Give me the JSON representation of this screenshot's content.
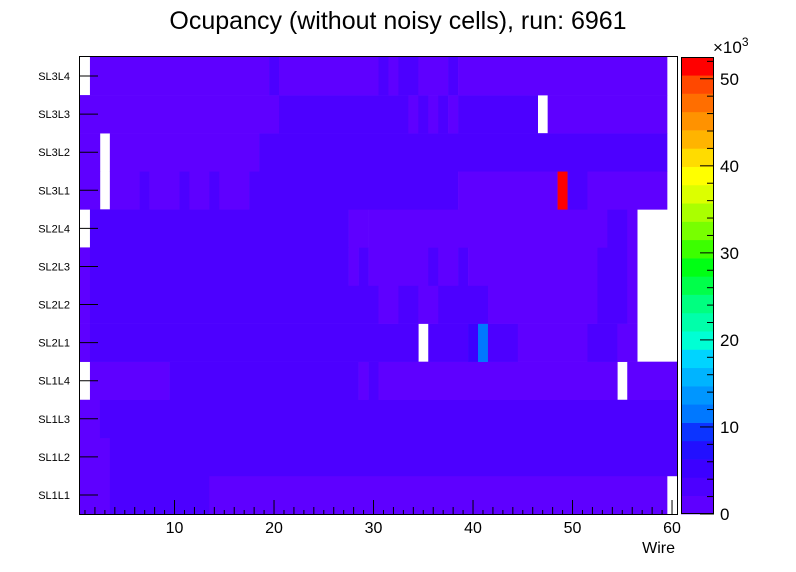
{
  "chart_data": {
    "type": "heatmap",
    "title": "Ocupancy (without noisy cells), run: 6961",
    "xlabel": "Wire",
    "ylabel": "",
    "xlim": [
      0.5,
      60.5
    ],
    "x_ticks": [
      "10",
      "20",
      "30",
      "40",
      "50",
      "60"
    ],
    "y_categories": [
      "SL1L1",
      "SL1L2",
      "SL1L3",
      "SL1L4",
      "SL2L1",
      "SL2L2",
      "SL2L3",
      "SL2L4",
      "SL3L1",
      "SL3L2",
      "SL3L3",
      "SL3L4"
    ],
    "zlim": [
      0,
      52500
    ],
    "z_ticks": [
      "0",
      "10",
      "20",
      "30",
      "40",
      "50"
    ],
    "z_exponent_label": "×10",
    "z_exponent_power": "3",
    "palette": [
      "#5e00ff",
      "#4c00ff",
      "#3c00ff",
      "#2210ff",
      "#0c34ff",
      "#0078ff",
      "#0096ff",
      "#00b4ff",
      "#00d4ff",
      "#00ffd4",
      "#00ffaa",
      "#00ff80",
      "#00ff4a",
      "#00ff14",
      "#3cff00",
      "#78ff00",
      "#aaff00",
      "#dcff00",
      "#ffff00",
      "#ffdc00",
      "#ffb400",
      "#ff9200",
      "#ff6e00",
      "#ff4800",
      "#ff0000"
    ],
    "rows": {
      "SL3L4": [
        [
          1,
          1,
          0
        ],
        [
          2,
          20,
          1000
        ],
        [
          20,
          21,
          3000
        ],
        [
          21,
          31,
          1000
        ],
        [
          31,
          32,
          3000
        ],
        [
          32,
          33,
          1000
        ],
        [
          33,
          35,
          3000
        ],
        [
          35,
          38,
          1000
        ],
        [
          38,
          39,
          3000
        ],
        [
          39,
          60,
          1000
        ]
      ],
      "SL3L3": [
        [
          1,
          21,
          1000
        ],
        [
          21,
          34,
          3000
        ],
        [
          34,
          35,
          1000
        ],
        [
          35,
          36,
          3000
        ],
        [
          36,
          37,
          1000
        ],
        [
          37,
          38,
          3000
        ],
        [
          38,
          39,
          1000
        ],
        [
          39,
          47,
          3000
        ],
        [
          47,
          48,
          0
        ],
        [
          48,
          60,
          1000
        ]
      ],
      "SL3L2": [
        [
          1,
          3,
          1000
        ],
        [
          3,
          4,
          0
        ],
        [
          4,
          19,
          1000
        ],
        [
          19,
          60,
          3000
        ]
      ],
      "SL3L1": [
        [
          1,
          3,
          1000
        ],
        [
          3,
          4,
          0
        ],
        [
          4,
          7,
          1000
        ],
        [
          7,
          8,
          3000
        ],
        [
          8,
          11,
          1000
        ],
        [
          11,
          12,
          3000
        ],
        [
          12,
          14,
          1000
        ],
        [
          14,
          15,
          3000
        ],
        [
          15,
          18,
          1000
        ],
        [
          18,
          39,
          3000
        ],
        [
          39,
          49,
          1000
        ],
        [
          49,
          50,
          52500
        ],
        [
          50,
          52,
          3000
        ],
        [
          52,
          60,
          1000
        ],
        [
          60,
          61,
          0
        ]
      ],
      "SL2L4": [
        [
          1,
          2,
          0
        ],
        [
          2,
          28,
          3000
        ],
        [
          28,
          30,
          1000
        ],
        [
          30,
          54,
          1000
        ],
        [
          54,
          56,
          3000
        ],
        [
          56,
          57,
          1000
        ],
        [
          57,
          61,
          0
        ]
      ],
      "SL2L3": [
        [
          1,
          2,
          1000
        ],
        [
          2,
          28,
          3000
        ],
        [
          28,
          29,
          1000
        ],
        [
          29,
          30,
          3000
        ],
        [
          30,
          36,
          1000
        ],
        [
          36,
          37,
          3000
        ],
        [
          37,
          39,
          1000
        ],
        [
          39,
          40,
          3000
        ],
        [
          40,
          53,
          1000
        ],
        [
          53,
          56,
          3000
        ],
        [
          56,
          57,
          1000
        ],
        [
          57,
          61,
          0
        ]
      ],
      "SL2L2": [
        [
          1,
          2,
          1000
        ],
        [
          2,
          31,
          3000
        ],
        [
          31,
          33,
          1000
        ],
        [
          33,
          35,
          3000
        ],
        [
          35,
          37,
          1000
        ],
        [
          37,
          42,
          3000
        ],
        [
          42,
          53,
          1000
        ],
        [
          53,
          56,
          3000
        ],
        [
          56,
          57,
          1000
        ],
        [
          57,
          61,
          0
        ]
      ],
      "SL2L1": [
        [
          1,
          2,
          1000
        ],
        [
          2,
          35,
          3000
        ],
        [
          35,
          36,
          0
        ],
        [
          36,
          40,
          3000
        ],
        [
          40,
          41,
          5500
        ],
        [
          41,
          42,
          10500
        ],
        [
          42,
          45,
          3000
        ],
        [
          45,
          52,
          1000
        ],
        [
          52,
          55,
          3000
        ],
        [
          55,
          57,
          1000
        ],
        [
          57,
          61,
          0
        ]
      ],
      "SL1L4": [
        [
          1,
          2,
          0
        ],
        [
          2,
          10,
          1000
        ],
        [
          10,
          29,
          3000
        ],
        [
          29,
          30,
          1000
        ],
        [
          30,
          31,
          3000
        ],
        [
          31,
          55,
          1000
        ],
        [
          55,
          56,
          0
        ],
        [
          56,
          61,
          1000
        ]
      ],
      "SL1L3": [
        [
          1,
          3,
          1000
        ],
        [
          3,
          61,
          3000
        ]
      ],
      "SL1L2": [
        [
          1,
          4,
          1000
        ],
        [
          4,
          61,
          3000
        ]
      ],
      "SL1L1": [
        [
          1,
          4,
          1000
        ],
        [
          4,
          14,
          3000
        ],
        [
          14,
          60,
          1000
        ],
        [
          60,
          61,
          0
        ]
      ]
    }
  }
}
